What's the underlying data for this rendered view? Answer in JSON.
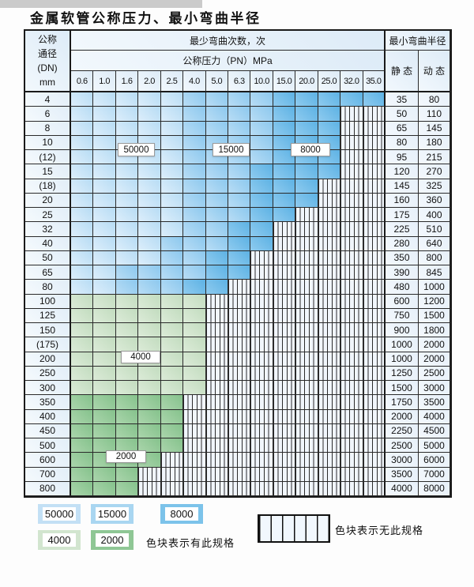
{
  "page": {
    "title": "金属软管公称压力、最小弯曲半径"
  },
  "table": {
    "header": {
      "dn_label_lines": [
        "公称",
        "通径",
        "(DN)",
        "mm"
      ],
      "bend_cycles_label": "最少弯曲次数，次",
      "pressure_label": "公称压力（PN）MPa",
      "pressure_columns": [
        "0.6",
        "1.0",
        "1.6",
        "2.0",
        "2.5",
        "4.0",
        "5.0",
        "6.3",
        "10.0",
        "15.0",
        "20.0",
        "25.0",
        "32.0",
        "35.0"
      ],
      "radius_label": "最小弯曲半径",
      "static_label": "静 态",
      "dynamic_label": "动 态"
    },
    "cell_codes": {
      "L": "50000次",
      "M": "15000次",
      "D": "8000次",
      "G": "4000次",
      "H": "2000次",
      "S": "无此规格"
    },
    "rows": [
      {
        "dn": "4",
        "cells": "LLLLLMMMMDDDDD",
        "static": "35",
        "dynamic": "80"
      },
      {
        "dn": "6",
        "cells": "LLLLLMMMMDDDSS",
        "static": "50",
        "dynamic": "110"
      },
      {
        "dn": "8",
        "cells": "LLLLLMMMMDDDSS",
        "static": "65",
        "dynamic": "145"
      },
      {
        "dn": "10",
        "cells": "LLLLLMMMMDDDSS",
        "static": "80",
        "dynamic": "180"
      },
      {
        "dn": "(12)",
        "cells": "LLLLLMMMMDDDSS",
        "static": "95",
        "dynamic": "215"
      },
      {
        "dn": "15",
        "cells": "LLLLLMMMDDDDSS",
        "static": "120",
        "dynamic": "270"
      },
      {
        "dn": "(18)",
        "cells": "LLLLLMMMDDDSSS",
        "static": "145",
        "dynamic": "325"
      },
      {
        "dn": "20",
        "cells": "LLLLLMMMDDDSSS",
        "static": "160",
        "dynamic": "360"
      },
      {
        "dn": "25",
        "cells": "LLLLLMMMDDSSSS",
        "static": "175",
        "dynamic": "400"
      },
      {
        "dn": "32",
        "cells": "LLLLLMMDDSSSSS",
        "static": "225",
        "dynamic": "510"
      },
      {
        "dn": "40",
        "cells": "LLLLMMMDDSSSSS",
        "static": "280",
        "dynamic": "640"
      },
      {
        "dn": "50",
        "cells": "LLLLMMDDSSSSSS",
        "static": "350",
        "dynamic": "800"
      },
      {
        "dn": "65",
        "cells": "LLMMMMDDSSSSSS",
        "static": "390",
        "dynamic": "845"
      },
      {
        "dn": "80",
        "cells": "LLMMMDDSSSSSSS",
        "static": "480",
        "dynamic": "1000"
      },
      {
        "dn": "100",
        "cells": "GGGGGGSSSSSSSS",
        "static": "600",
        "dynamic": "1200"
      },
      {
        "dn": "125",
        "cells": "GGGGGGSSSSSSSS",
        "static": "750",
        "dynamic": "1500"
      },
      {
        "dn": "150",
        "cells": "GGGGGGSSSSSSSS",
        "static": "900",
        "dynamic": "1800"
      },
      {
        "dn": "(175)",
        "cells": "GGGGGGSSSSSSSS",
        "static": "1000",
        "dynamic": "2000"
      },
      {
        "dn": "200",
        "cells": "GGGGGGSSSSSSSS",
        "static": "1000",
        "dynamic": "2000"
      },
      {
        "dn": "250",
        "cells": "GGGGGGSSSSSSSS",
        "static": "1250",
        "dynamic": "2500"
      },
      {
        "dn": "300",
        "cells": "GGGGGGSSSSSSSS",
        "static": "1500",
        "dynamic": "3000"
      },
      {
        "dn": "350",
        "cells": "HHHHHSSSSSSSSS",
        "static": "1750",
        "dynamic": "3500"
      },
      {
        "dn": "400",
        "cells": "HHHHHSSSSSSSSS",
        "static": "2000",
        "dynamic": "4000"
      },
      {
        "dn": "450",
        "cells": "HHHHHSSSSSSSSS",
        "static": "2250",
        "dynamic": "4500"
      },
      {
        "dn": "500",
        "cells": "HHHHHSSSSSSSSS",
        "static": "2500",
        "dynamic": "5000"
      },
      {
        "dn": "600",
        "cells": "HHHHSSSSSSSSSS",
        "static": "3000",
        "dynamic": "6000"
      },
      {
        "dn": "700",
        "cells": "HHHSSSSSSSSSSS",
        "static": "3500",
        "dynamic": "7000"
      },
      {
        "dn": "800",
        "cells": "HHHSSSSSSSSSSS",
        "static": "4000",
        "dynamic": "8000"
      }
    ]
  },
  "overlays": [
    "50000",
    "15000",
    "8000",
    "4000",
    "2000"
  ],
  "legend": {
    "items": [
      {
        "code": "L",
        "label": "50000",
        "color": "#c3e0f5"
      },
      {
        "code": "M",
        "label": "15000",
        "color": "#a9d6f1"
      },
      {
        "code": "D",
        "label": "8000",
        "color": "#7cc3ea"
      },
      {
        "code": "G",
        "label": "4000",
        "color": "#d2e5cf"
      },
      {
        "code": "H",
        "label": "2000",
        "color": "#8fc795"
      }
    ],
    "has_spec_note": "色块表示有此规格",
    "no_spec_note": "色块表示无此规格"
  },
  "colors": {
    "band_50000": "#c3e0f5",
    "band_15000": "#a9d6f1",
    "band_8000": "#7cc3ea",
    "band_4000": "#d2e5cf",
    "band_2000": "#8fc795",
    "no_spec_bg": "#f1f6fc",
    "grid_line": "#2a2a2a",
    "header_bg": "#e4eff9"
  }
}
